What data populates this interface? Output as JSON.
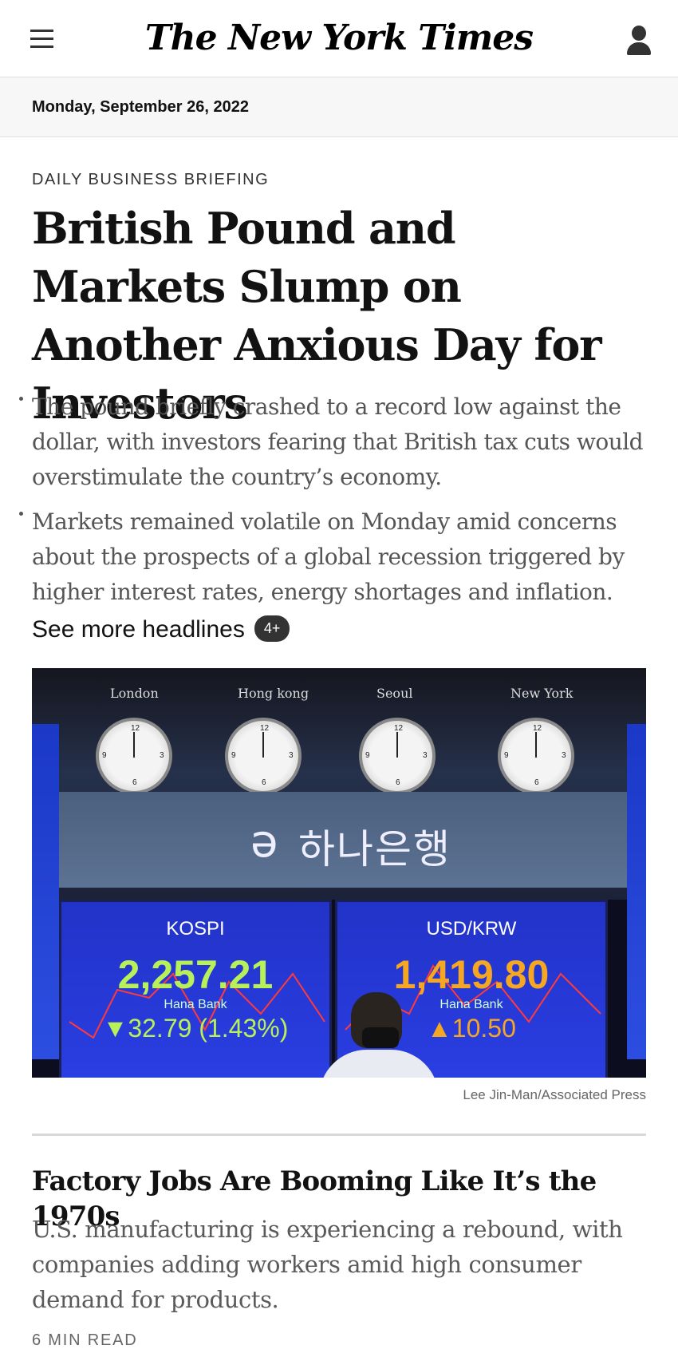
{
  "header": {
    "logo_text": "The New York Times",
    "menu_icon": "hamburger-menu-icon",
    "account_icon": "user-account-icon"
  },
  "date_bar": {
    "date": "Monday, September 26, 2022"
  },
  "lead": {
    "kicker": "DAILY BUSINESS BRIEFING",
    "headline": "British Pound and Markets Slump on Another Anxious Day for Investors",
    "bullets": [
      "The pound briefly crashed to a record low against the dollar, with investors fearing that British tax cuts would overstimulate the country’s economy.",
      "Markets remained volatile on Monday amid concerns about the prospects of a global recession triggered by higher interest rates, energy shortages and inflation."
    ],
    "see_more_label": "See more headlines",
    "see_more_badge": "4+",
    "photo": {
      "clock_cities": [
        "London",
        "Hong kong",
        "Seoul",
        "New York"
      ],
      "bank_sign": "하나은행",
      "kospi": {
        "name": "KOSPI",
        "value": "2,257.21",
        "sub": "Hana Bank",
        "change": "▼32.79 (1.43%)"
      },
      "usdkrw": {
        "name": "USD/KRW",
        "value": "1,419.80",
        "sub": "Hana Bank",
        "change": "▲10.50"
      }
    },
    "photo_credit": "Lee Jin-Man/Associated Press"
  },
  "story": {
    "title": "Factory Jobs Are Booming Like It’s the 1970s",
    "summary": "U.S. manufacturing is experiencing a rebound, with companies adding workers amid high consumer demand for products.",
    "read_time": "6 MIN READ"
  },
  "colors": {
    "text": "#121212",
    "muted": "#555555",
    "kospi_value": "#b8f05a",
    "usdkrw_value": "#f5a623"
  }
}
